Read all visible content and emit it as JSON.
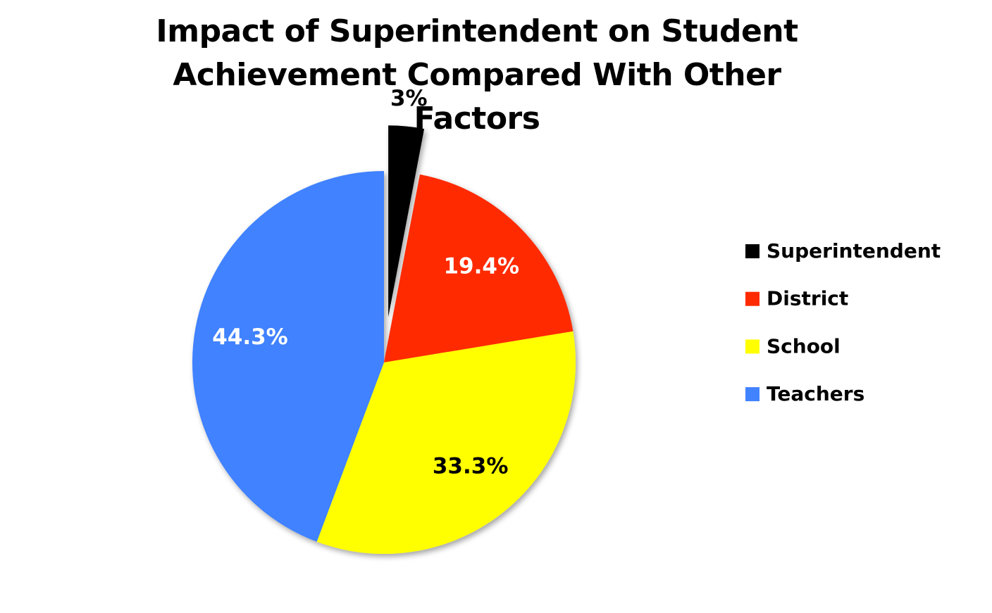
{
  "chart_data": {
    "type": "pie",
    "title": "Impact of Superintendent on Student Achievement Compared With Other Factors",
    "categories": [
      "Superintendent",
      "District",
      "School",
      "Teachers"
    ],
    "values": [
      3,
      19.4,
      33.3,
      44.3
    ],
    "value_labels": [
      "3%",
      "19.4%",
      "33.3%",
      "44.3%"
    ],
    "colors": [
      "#000000",
      "#ff2a00",
      "#ffff00",
      "#4182ff"
    ],
    "value_label_colors": [
      "#000000",
      "#ffffff",
      "#000000",
      "#ffffff"
    ],
    "explode": [
      true,
      false,
      false,
      false
    ],
    "legend": "right"
  }
}
